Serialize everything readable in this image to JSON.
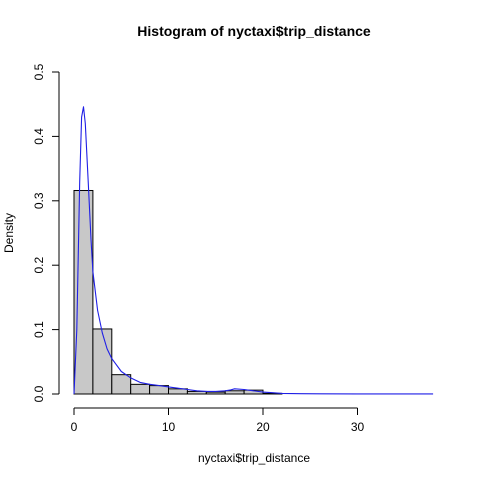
{
  "chart_data": {
    "type": "bar",
    "title": "Histogram of nyctaxi$trip_distance",
    "xlabel": "nyctaxi$trip_distance",
    "ylabel": "Density",
    "xlim": [
      0,
      38
    ],
    "ylim": [
      0,
      0.5
    ],
    "x_ticks": [
      0,
      10,
      20,
      30
    ],
    "x_tick_labels": [
      "0",
      "10",
      "20",
      "30"
    ],
    "y_ticks": [
      0.0,
      0.1,
      0.2,
      0.3,
      0.4,
      0.5
    ],
    "y_tick_labels": [
      "0.0",
      "0.1",
      "0.2",
      "0.3",
      "0.4",
      "0.5"
    ],
    "bin_width": 2,
    "bins": [
      {
        "x0": 0,
        "x1": 2,
        "density": 0.316
      },
      {
        "x0": 2,
        "x1": 4,
        "density": 0.101
      },
      {
        "x0": 4,
        "x1": 6,
        "density": 0.03
      },
      {
        "x0": 6,
        "x1": 8,
        "density": 0.015
      },
      {
        "x0": 8,
        "x1": 10,
        "density": 0.013
      },
      {
        "x0": 10,
        "x1": 12,
        "density": 0.008
      },
      {
        "x0": 12,
        "x1": 14,
        "density": 0.004
      },
      {
        "x0": 14,
        "x1": 16,
        "density": 0.003
      },
      {
        "x0": 16,
        "x1": 18,
        "density": 0.005
      },
      {
        "x0": 18,
        "x1": 20,
        "density": 0.006
      },
      {
        "x0": 20,
        "x1": 22,
        "density": 0.001
      }
    ],
    "density_curve": {
      "x": [
        0,
        0.3,
        0.6,
        0.8,
        1.0,
        1.2,
        1.5,
        1.8,
        2.0,
        2.5,
        3.0,
        3.5,
        4.0,
        5.0,
        6.0,
        7.0,
        8.0,
        9.0,
        10.0,
        11.0,
        12.0,
        13.0,
        14.0,
        15.0,
        16.0,
        16.5,
        17.0,
        18.0,
        19.0,
        20.0,
        21.0,
        22.0,
        24.0,
        26.0,
        30.0,
        35.0,
        38.0
      ],
      "y": [
        0.0,
        0.1,
        0.33,
        0.43,
        0.446,
        0.42,
        0.33,
        0.24,
        0.19,
        0.13,
        0.095,
        0.07,
        0.055,
        0.035,
        0.025,
        0.018,
        0.015,
        0.013,
        0.011,
        0.009,
        0.007,
        0.005,
        0.004,
        0.004,
        0.005,
        0.006,
        0.008,
        0.007,
        0.005,
        0.003,
        0.002,
        0.001,
        0.0005,
        0.0003,
        0.0002,
        0.0001,
        0.0001
      ]
    },
    "colors": {
      "bar_fill": "#c8c8c8",
      "bar_stroke": "#000000",
      "curve": "#1f1fe6",
      "axis": "#000000"
    },
    "grid": false,
    "legend": "none"
  }
}
